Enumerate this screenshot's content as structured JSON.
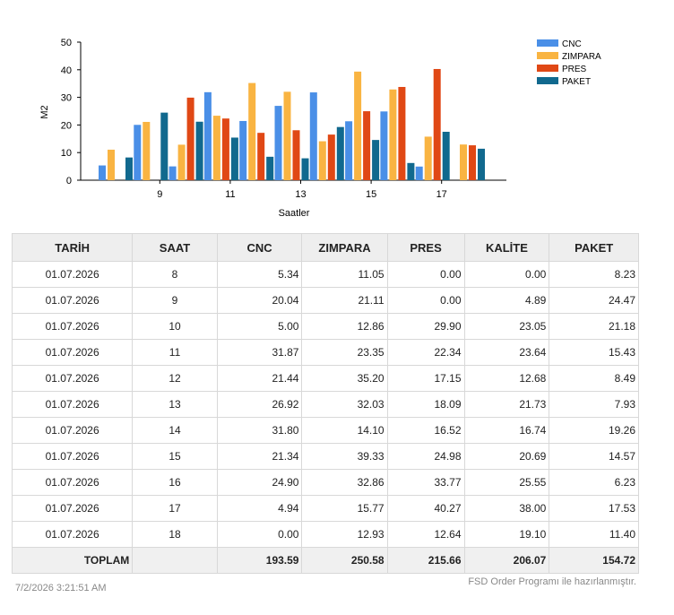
{
  "chart_data": {
    "type": "bar",
    "xlabel": "Saatler",
    "ylabel": "M2",
    "ylim": [
      0,
      50
    ],
    "yticks": [
      0,
      10,
      20,
      30,
      40,
      50
    ],
    "categories": [
      8,
      9,
      10,
      11,
      12,
      13,
      14,
      15,
      16,
      17,
      18
    ],
    "xtick_labels": [
      "9",
      "11",
      "13",
      "15",
      "17"
    ],
    "legend_position": "top-right",
    "grid": false,
    "series": [
      {
        "name": "CNC",
        "color": "#4a8fe7",
        "values": [
          5.34,
          20.04,
          5.0,
          31.87,
          21.44,
          26.92,
          31.8,
          21.34,
          24.9,
          4.94,
          0.0
        ]
      },
      {
        "name": "ZIMPARA",
        "color": "#f9b442",
        "values": [
          11.05,
          21.11,
          12.86,
          23.35,
          35.2,
          32.03,
          14.1,
          39.33,
          32.86,
          15.77,
          12.93
        ]
      },
      {
        "name": "PRES",
        "color": "#e04815",
        "values": [
          0.0,
          0.0,
          29.9,
          22.34,
          17.15,
          18.09,
          16.52,
          24.98,
          33.77,
          40.27,
          12.64
        ]
      },
      {
        "name": "PAKET",
        "color": "#11698e",
        "values": [
          8.23,
          24.47,
          21.18,
          15.43,
          8.49,
          7.93,
          19.26,
          14.57,
          6.23,
          17.53,
          11.4
        ]
      }
    ]
  },
  "table": {
    "headers": [
      "TARİH",
      "SAAT",
      "CNC",
      "ZIMPARA",
      "PRES",
      "KALİTE",
      "PAKET"
    ],
    "rows": [
      [
        "01.07.2026",
        "8",
        "5.34",
        "11.05",
        "0.00",
        "0.00",
        "8.23"
      ],
      [
        "01.07.2026",
        "9",
        "20.04",
        "21.11",
        "0.00",
        "4.89",
        "24.47"
      ],
      [
        "01.07.2026",
        "10",
        "5.00",
        "12.86",
        "29.90",
        "23.05",
        "21.18"
      ],
      [
        "01.07.2026",
        "11",
        "31.87",
        "23.35",
        "22.34",
        "23.64",
        "15.43"
      ],
      [
        "01.07.2026",
        "12",
        "21.44",
        "35.20",
        "17.15",
        "12.68",
        "8.49"
      ],
      [
        "01.07.2026",
        "13",
        "26.92",
        "32.03",
        "18.09",
        "21.73",
        "7.93"
      ],
      [
        "01.07.2026",
        "14",
        "31.80",
        "14.10",
        "16.52",
        "16.74",
        "19.26"
      ],
      [
        "01.07.2026",
        "15",
        "21.34",
        "39.33",
        "24.98",
        "20.69",
        "14.57"
      ],
      [
        "01.07.2026",
        "16",
        "24.90",
        "32.86",
        "33.77",
        "25.55",
        "6.23"
      ],
      [
        "01.07.2026",
        "17",
        "4.94",
        "15.77",
        "40.27",
        "38.00",
        "17.53"
      ],
      [
        "01.07.2026",
        "18",
        "0.00",
        "12.93",
        "12.64",
        "19.10",
        "11.40"
      ]
    ],
    "totals": {
      "label": "TOPLAM",
      "saat": "",
      "values": [
        "193.59",
        "250.58",
        "215.66",
        "206.07",
        "154.72"
      ]
    }
  },
  "footer": {
    "timestamp": "7/2/2026 3:21:51 AM",
    "credit": "FSD Order Programı ile hazırlanmıştır."
  }
}
